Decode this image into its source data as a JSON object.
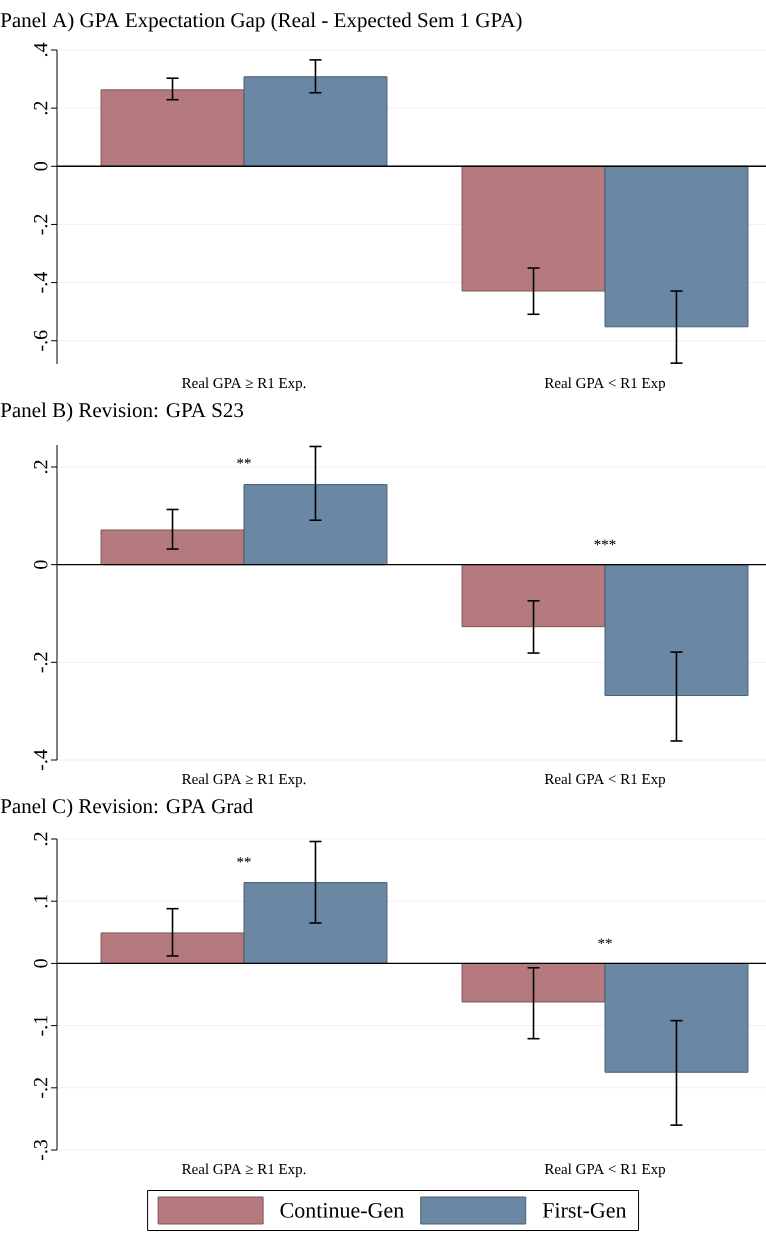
{
  "chart_data": [
    {
      "type": "bar",
      "title": "Panel A) GPA Expectation Gap (Real - Expected Sem 1 GPA)",
      "categories": [
        "Real GPA ≥ R1 Exp.",
        "Real GPA < R1 Exp"
      ],
      "series": [
        {
          "color": "#b57a7e",
          "values": [
            0.263,
            -0.429
          ],
          "errors": [
            [
              0.229,
              0.303
            ],
            [
              -0.509,
              -0.35
            ]
          ]
        },
        {
          "color": "#6a88a3",
          "values": [
            0.308,
            -0.552
          ],
          "errors": [
            [
              0.253,
              0.366
            ],
            [
              -0.677,
              -0.429
            ]
          ]
        }
      ],
      "ylim": [
        -0.68,
        0.4
      ],
      "yticks": [
        {
          "value": -0.6,
          "label": "-.6"
        },
        {
          "value": -0.4,
          "label": "-.4"
        },
        {
          "value": -0.2,
          "label": "-.2"
        },
        0,
        {
          "value": 0.2,
          "label": ".2"
        },
        {
          "value": 0.4,
          "label": ".4"
        }
      ],
      "grid": "y",
      "ref_lines": [
        {
          "axis": "y",
          "value": 0,
          "color": "#000000"
        }
      ]
    },
    {
      "type": "bar",
      "title": "Panel B) Revision: GPA S23",
      "categories": [
        "Real GPA ≥ R1 Exp.",
        "Real GPA < R1 Exp"
      ],
      "series": [
        {
          "color": "#b57a7e",
          "values": [
            0.071,
            -0.127
          ],
          "errors": [
            [
              0.032,
              0.113
            ],
            [
              -0.181,
              -0.074
            ]
          ]
        },
        {
          "color": "#6a88a3",
          "values": [
            0.164,
            -0.268
          ],
          "errors": [
            [
              0.091,
              0.242
            ],
            [
              -0.361,
              -0.179
            ]
          ]
        }
      ],
      "ylim": [
        -0.4,
        0.245
      ],
      "yticks": [
        {
          "value": -0.4,
          "label": "-.4"
        },
        {
          "value": -0.2,
          "label": "-.2"
        },
        0,
        {
          "value": 0.2,
          "label": ".2"
        }
      ],
      "grid": "y",
      "ref_lines": [
        {
          "axis": "y",
          "value": 0,
          "color": "#000000"
        }
      ],
      "annotations": [
        "**",
        "***"
      ]
    },
    {
      "type": "bar",
      "title": "Panel C) Revision: GPA Grad",
      "categories": [
        "Real GPA ≥ R1 Exp.",
        "Real GPA < R1 Exp"
      ],
      "series": [
        {
          "name": "Continue-Gen",
          "color": "#b57a7e",
          "values": [
            0.049,
            -0.062
          ],
          "errors": [
            [
              0.012,
              0.088
            ],
            [
              -0.121,
              -0.007
            ]
          ]
        },
        {
          "name": "First-Gen",
          "color": "#6a88a3",
          "values": [
            0.13,
            -0.175
          ],
          "errors": [
            [
              0.065,
              0.196
            ],
            [
              -0.26,
              -0.092
            ]
          ]
        }
      ],
      "ylim": [
        -0.3,
        0.2
      ],
      "yticks": [
        {
          "value": -0.3,
          "label": "-.3"
        },
        {
          "value": -0.2,
          "label": "-.2"
        },
        {
          "value": -0.1,
          "label": "-.1"
        },
        0,
        {
          "value": 0.1,
          "label": ".1"
        },
        {
          "value": 0.2,
          "label": ".2"
        }
      ],
      "grid": "y",
      "ref_lines": [
        {
          "axis": "y",
          "value": 0,
          "color": "#000000"
        }
      ],
      "legend": "bottom",
      "annotations": [
        "**",
        "**"
      ]
    }
  ]
}
